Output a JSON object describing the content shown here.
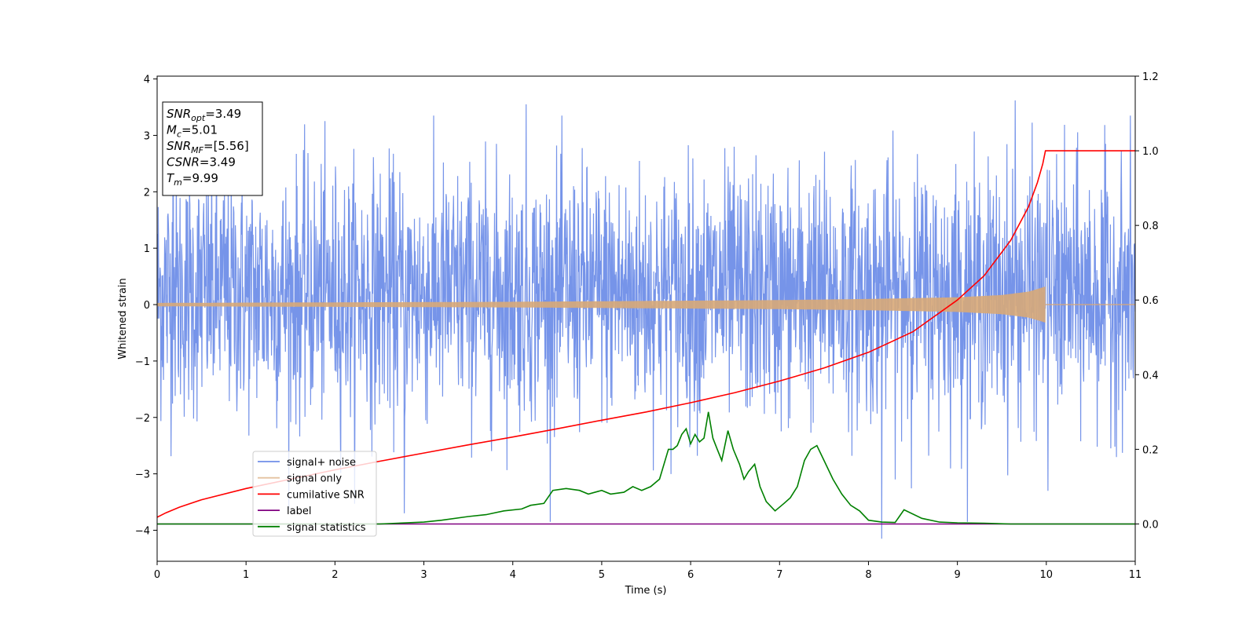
{
  "chart_data": {
    "type": "line",
    "xlabel": "Time (s)",
    "ylabel": "Whitened strain",
    "xlim": [
      0,
      11
    ],
    "ylim_left": [
      -4.55,
      4.05
    ],
    "ylim_right": [
      -0.1,
      1.2
    ],
    "x_ticks": [
      "0",
      "1",
      "2",
      "3",
      "4",
      "5",
      "6",
      "7",
      "8",
      "9",
      "10",
      "11"
    ],
    "y_ticks_left": [
      "−4",
      "−3",
      "−2",
      "−1",
      "0",
      "1",
      "2",
      "3",
      "4"
    ],
    "y_ticks_right": [
      "0.0",
      "0.2",
      "0.4",
      "0.6",
      "0.8",
      "1.0",
      "1.2"
    ],
    "grid": false,
    "legend_position": "lower-left",
    "annotation": [
      {
        "base": "SNR",
        "sub": "opt",
        "rest": "=3.49"
      },
      {
        "base": "M",
        "sub": "c",
        "rest": "=5.01"
      },
      {
        "base": "SNR",
        "sub": "MF",
        "rest": "=[5.56]"
      },
      {
        "base": "CSNR",
        "sub": "",
        "rest": "=3.49"
      },
      {
        "base": "T",
        "sub": "m",
        "rest": "=9.99"
      }
    ],
    "series": [
      {
        "name": "signal+ noise",
        "axis": "left",
        "color": "#6f8ee8",
        "kind": "noise",
        "x_range": [
          0,
          11
        ],
        "typical_range": [
          -1.8,
          2.2
        ],
        "extremes": [
          -4.15,
          3.65
        ],
        "notable_peaks": [
          [
            4.15,
            3.55
          ],
          [
            9.65,
            3.62
          ],
          [
            8.15,
            -4.15
          ],
          [
            2.78,
            -3.7
          ],
          [
            0.18,
            2.3
          ],
          [
            10.02,
            -3.3
          ]
        ]
      },
      {
        "name": "signal only",
        "axis": "left",
        "color": "#d8a878",
        "kind": "chirp",
        "x_range": [
          0,
          9.99
        ],
        "amplitude": [
          [
            0,
            0.03
          ],
          [
            2,
            0.04
          ],
          [
            4,
            0.05
          ],
          [
            5,
            0.06
          ],
          [
            6,
            0.07
          ],
          [
            7,
            0.08
          ],
          [
            8,
            0.1
          ],
          [
            9,
            0.13
          ],
          [
            9.5,
            0.17
          ],
          [
            9.8,
            0.23
          ],
          [
            9.95,
            0.3
          ],
          [
            9.99,
            0.32
          ]
        ],
        "after": 0.0
      },
      {
        "name": "cumilative SNR",
        "axis": "right",
        "color": "#ff0000",
        "x": [
          0,
          0.1,
          0.25,
          0.5,
          1,
          1.5,
          2,
          2.5,
          3,
          3.5,
          4,
          4.5,
          5,
          5.5,
          6,
          6.5,
          7,
          7.5,
          8,
          8.5,
          9,
          9.3,
          9.6,
          9.8,
          9.9,
          9.96,
          9.99,
          10,
          11
        ],
        "values": [
          0.018,
          0.03,
          0.045,
          0.065,
          0.095,
          0.12,
          0.145,
          0.168,
          0.19,
          0.212,
          0.233,
          0.255,
          0.278,
          0.3,
          0.325,
          0.352,
          0.383,
          0.418,
          0.46,
          0.515,
          0.6,
          0.665,
          0.76,
          0.85,
          0.915,
          0.965,
          1.0,
          1.0,
          1.0
        ]
      },
      {
        "name": "label",
        "axis": "right",
        "color": "#800080",
        "x": [
          0,
          11
        ],
        "values": [
          0.0,
          0.0
        ]
      },
      {
        "name": "signal statistics",
        "axis": "right",
        "color": "#008000",
        "x": [
          0,
          2.5,
          3.0,
          3.2,
          3.5,
          3.7,
          3.9,
          4.1,
          4.2,
          4.35,
          4.45,
          4.6,
          4.75,
          4.85,
          5.0,
          5.1,
          5.25,
          5.35,
          5.45,
          5.55,
          5.65,
          5.75,
          5.8,
          5.85,
          5.9,
          5.95,
          6.0,
          6.05,
          6.1,
          6.15,
          6.2,
          6.25,
          6.3,
          6.35,
          6.42,
          6.48,
          6.55,
          6.6,
          6.65,
          6.72,
          6.78,
          6.85,
          6.95,
          7.05,
          7.12,
          7.2,
          7.28,
          7.35,
          7.42,
          7.5,
          7.6,
          7.7,
          7.8,
          7.9,
          8.0,
          8.15,
          8.3,
          8.4,
          8.6,
          8.8,
          9.0,
          9.3,
          9.6,
          11
        ],
        "values": [
          0.0,
          0.0,
          0.005,
          0.01,
          0.02,
          0.025,
          0.035,
          0.04,
          0.05,
          0.055,
          0.09,
          0.095,
          0.09,
          0.08,
          0.09,
          0.08,
          0.085,
          0.1,
          0.09,
          0.1,
          0.12,
          0.2,
          0.2,
          0.21,
          0.24,
          0.255,
          0.215,
          0.24,
          0.22,
          0.23,
          0.3,
          0.23,
          0.2,
          0.17,
          0.25,
          0.2,
          0.16,
          0.12,
          0.14,
          0.16,
          0.1,
          0.06,
          0.035,
          0.055,
          0.07,
          0.1,
          0.17,
          0.2,
          0.21,
          0.17,
          0.12,
          0.08,
          0.05,
          0.035,
          0.01,
          0.005,
          0.004,
          0.038,
          0.015,
          0.005,
          0.003,
          0.002,
          0.0,
          0.0
        ]
      }
    ]
  }
}
